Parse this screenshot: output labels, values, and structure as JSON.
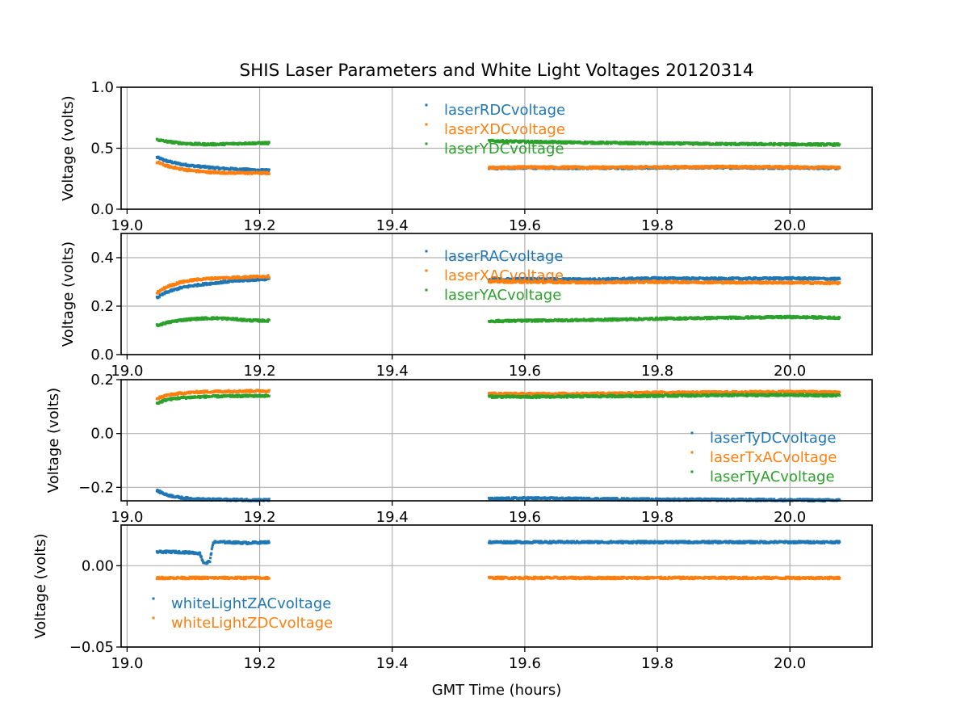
{
  "chart_data": {
    "type": "scatter",
    "title": "SHIS Laser Parameters and White Light Voltages 20120314",
    "xlabel": "GMT Time (hours)",
    "xlim": [
      18.991,
      20.124
    ],
    "xticks": [
      19.0,
      19.2,
      19.4,
      19.6,
      19.8,
      20.0
    ],
    "xtick_labels": [
      "19.0",
      "19.2",
      "19.4",
      "19.6",
      "19.8",
      "20.0"
    ],
    "grid": true,
    "colors": {
      "c0": "#1f77b4",
      "c1": "#ff7f0e",
      "c2": "#2ca02c"
    },
    "panels": [
      {
        "ylabel": "Voltage (volts)",
        "ylim": [
          0.0,
          1.0
        ],
        "yticks": [
          0.0,
          0.5,
          1.0
        ],
        "ytick_labels": [
          "0.0",
          "0.5",
          "1.0"
        ],
        "legend_position": "upper-center",
        "series": [
          {
            "name": "laserRDCvoltage",
            "color": "#1f77b4",
            "points": [
              [
                19.045,
                0.425
              ],
              [
                19.06,
                0.395
              ],
              [
                19.08,
                0.37
              ],
              [
                19.1,
                0.355
              ],
              [
                19.12,
                0.345
              ],
              [
                19.14,
                0.335
              ],
              [
                19.16,
                0.33
              ],
              [
                19.18,
                0.325
              ],
              [
                19.2,
                0.32
              ],
              [
                19.215,
                0.318
              ],
              [
                19.546,
                0.335
              ],
              [
                19.6,
                0.34
              ],
              [
                19.7,
                0.338
              ],
              [
                19.8,
                0.34
              ],
              [
                19.9,
                0.342
              ],
              [
                20.0,
                0.34
              ],
              [
                20.075,
                0.338
              ]
            ]
          },
          {
            "name": "laserXDCvoltage",
            "color": "#ff7f0e",
            "points": [
              [
                19.045,
                0.385
              ],
              [
                19.06,
                0.355
              ],
              [
                19.08,
                0.33
              ],
              [
                19.1,
                0.315
              ],
              [
                19.12,
                0.305
              ],
              [
                19.14,
                0.3
              ],
              [
                19.16,
                0.298
              ],
              [
                19.18,
                0.297
              ],
              [
                19.2,
                0.297
              ],
              [
                19.215,
                0.296
              ],
              [
                19.546,
                0.34
              ],
              [
                19.6,
                0.345
              ],
              [
                19.7,
                0.342
              ],
              [
                19.8,
                0.345
              ],
              [
                19.9,
                0.347
              ],
              [
                20.0,
                0.345
              ],
              [
                20.075,
                0.342
              ]
            ]
          },
          {
            "name": "laserYDCvoltage",
            "color": "#2ca02c",
            "points": [
              [
                19.045,
                0.57
              ],
              [
                19.06,
                0.555
              ],
              [
                19.08,
                0.542
              ],
              [
                19.1,
                0.535
              ],
              [
                19.12,
                0.532
              ],
              [
                19.14,
                0.533
              ],
              [
                19.16,
                0.537
              ],
              [
                19.18,
                0.54
              ],
              [
                19.2,
                0.542
              ],
              [
                19.215,
                0.542
              ],
              [
                19.546,
                0.56
              ],
              [
                19.6,
                0.553
              ],
              [
                19.7,
                0.545
              ],
              [
                19.8,
                0.54
              ],
              [
                19.9,
                0.535
              ],
              [
                20.0,
                0.532
              ],
              [
                20.075,
                0.53
              ]
            ]
          }
        ]
      },
      {
        "ylabel": "Voltage (volts)",
        "ylim": [
          0.0,
          0.5
        ],
        "yticks": [
          0.0,
          0.2,
          0.4
        ],
        "ytick_labels": [
          "0.0",
          "0.2",
          "0.4"
        ],
        "legend_position": "upper-center",
        "series": [
          {
            "name": "laserRACvoltage",
            "color": "#1f77b4",
            "points": [
              [
                19.045,
                0.235
              ],
              [
                19.06,
                0.258
              ],
              [
                19.08,
                0.275
              ],
              [
                19.1,
                0.285
              ],
              [
                19.12,
                0.292
              ],
              [
                19.14,
                0.298
              ],
              [
                19.16,
                0.303
              ],
              [
                19.18,
                0.307
              ],
              [
                19.2,
                0.31
              ],
              [
                19.215,
                0.313
              ],
              [
                19.546,
                0.31
              ],
              [
                19.6,
                0.312
              ],
              [
                19.7,
                0.31
              ],
              [
                19.8,
                0.315
              ],
              [
                19.9,
                0.313
              ],
              [
                20.0,
                0.315
              ],
              [
                20.075,
                0.312
              ]
            ]
          },
          {
            "name": "laserXACvoltage",
            "color": "#ff7f0e",
            "points": [
              [
                19.045,
                0.255
              ],
              [
                19.06,
                0.28
              ],
              [
                19.08,
                0.298
              ],
              [
                19.1,
                0.308
              ],
              [
                19.12,
                0.313
              ],
              [
                19.14,
                0.316
              ],
              [
                19.16,
                0.318
              ],
              [
                19.18,
                0.32
              ],
              [
                19.2,
                0.322
              ],
              [
                19.215,
                0.323
              ],
              [
                19.546,
                0.302
              ],
              [
                19.6,
                0.3
              ],
              [
                19.7,
                0.298
              ],
              [
                19.8,
                0.3
              ],
              [
                19.9,
                0.298
              ],
              [
                20.0,
                0.297
              ],
              [
                20.075,
                0.295
              ]
            ]
          },
          {
            "name": "laserYACvoltage",
            "color": "#2ca02c",
            "points": [
              [
                19.045,
                0.12
              ],
              [
                19.06,
                0.132
              ],
              [
                19.08,
                0.142
              ],
              [
                19.1,
                0.147
              ],
              [
                19.12,
                0.15
              ],
              [
                19.14,
                0.15
              ],
              [
                19.16,
                0.147
              ],
              [
                19.18,
                0.142
              ],
              [
                19.2,
                0.14
              ],
              [
                19.215,
                0.14
              ],
              [
                19.546,
                0.138
              ],
              [
                19.6,
                0.14
              ],
              [
                19.7,
                0.143
              ],
              [
                19.8,
                0.148
              ],
              [
                19.9,
                0.152
              ],
              [
                20.0,
                0.155
              ],
              [
                20.075,
                0.152
              ]
            ]
          }
        ]
      },
      {
        "ylabel": "Voltage (volts)",
        "ylim": [
          -0.25,
          0.2
        ],
        "yticks": [
          -0.2,
          0.0,
          0.2
        ],
        "ytick_labels": [
          "−0.2",
          "0.0",
          "0.2"
        ],
        "legend_position": "lower-right",
        "series": [
          {
            "name": "laserTyDCvoltage",
            "color": "#1f77b4",
            "points": [
              [
                19.045,
                -0.212
              ],
              [
                19.06,
                -0.228
              ],
              [
                19.08,
                -0.238
              ],
              [
                19.1,
                -0.243
              ],
              [
                19.12,
                -0.245
              ],
              [
                19.16,
                -0.246
              ],
              [
                19.2,
                -0.247
              ],
              [
                19.215,
                -0.247
              ],
              [
                19.546,
                -0.243
              ],
              [
                19.6,
                -0.24
              ],
              [
                19.7,
                -0.243
              ],
              [
                19.8,
                -0.245
              ],
              [
                19.9,
                -0.246
              ],
              [
                20.0,
                -0.247
              ],
              [
                20.075,
                -0.248
              ]
            ]
          },
          {
            "name": "laserTxACvoltage",
            "color": "#ff7f0e",
            "points": [
              [
                19.045,
                0.13
              ],
              [
                19.06,
                0.142
              ],
              [
                19.08,
                0.149
              ],
              [
                19.1,
                0.153
              ],
              [
                19.12,
                0.155
              ],
              [
                19.16,
                0.157
              ],
              [
                19.2,
                0.158
              ],
              [
                19.215,
                0.158
              ],
              [
                19.546,
                0.148
              ],
              [
                19.6,
                0.147
              ],
              [
                19.7,
                0.148
              ],
              [
                19.8,
                0.152
              ],
              [
                19.9,
                0.153
              ],
              [
                20.0,
                0.155
              ],
              [
                20.075,
                0.153
              ]
            ]
          },
          {
            "name": "laserTyACvoltage",
            "color": "#2ca02c",
            "points": [
              [
                19.045,
                0.112
              ],
              [
                19.06,
                0.126
              ],
              [
                19.08,
                0.132
              ],
              [
                19.1,
                0.135
              ],
              [
                19.12,
                0.137
              ],
              [
                19.16,
                0.139
              ],
              [
                19.2,
                0.14
              ],
              [
                19.215,
                0.14
              ],
              [
                19.546,
                0.137
              ],
              [
                19.6,
                0.136
              ],
              [
                19.7,
                0.138
              ],
              [
                19.8,
                0.14
              ],
              [
                19.9,
                0.142
              ],
              [
                20.0,
                0.143
              ],
              [
                20.075,
                0.141
              ]
            ]
          }
        ]
      },
      {
        "ylabel": "Voltage (volts)",
        "ylim": [
          -0.05,
          0.025
        ],
        "yticks": [
          -0.05,
          0.0
        ],
        "ytick_labels": [
          "−0.05",
          "0.00"
        ],
        "legend_position": "lower-left",
        "series": [
          {
            "name": "whiteLightZACvoltage",
            "color": "#1f77b4",
            "points": [
              [
                19.045,
                0.0085
              ],
              [
                19.07,
                0.0085
              ],
              [
                19.1,
                0.008
              ],
              [
                19.11,
                0.0075
              ],
              [
                19.115,
                0.002
              ],
              [
                19.12,
                0.0015
              ],
              [
                19.125,
                0.003
              ],
              [
                19.13,
                0.0145
              ],
              [
                19.15,
                0.0145
              ],
              [
                19.18,
                0.014
              ],
              [
                19.215,
                0.0145
              ],
              [
                19.546,
                0.0145
              ],
              [
                19.6,
                0.0145
              ],
              [
                19.7,
                0.0145
              ],
              [
                19.8,
                0.0145
              ],
              [
                19.9,
                0.0145
              ],
              [
                20.0,
                0.0145
              ],
              [
                20.075,
                0.0145
              ]
            ]
          },
          {
            "name": "whiteLightZDCvoltage",
            "color": "#ff7f0e",
            "points": [
              [
                19.045,
                -0.0075
              ],
              [
                19.1,
                -0.0075
              ],
              [
                19.15,
                -0.0075
              ],
              [
                19.215,
                -0.0075
              ],
              [
                19.546,
                -0.0075
              ],
              [
                19.7,
                -0.0075
              ],
              [
                19.9,
                -0.0075
              ],
              [
                20.075,
                -0.0075
              ]
            ]
          }
        ]
      }
    ]
  }
}
